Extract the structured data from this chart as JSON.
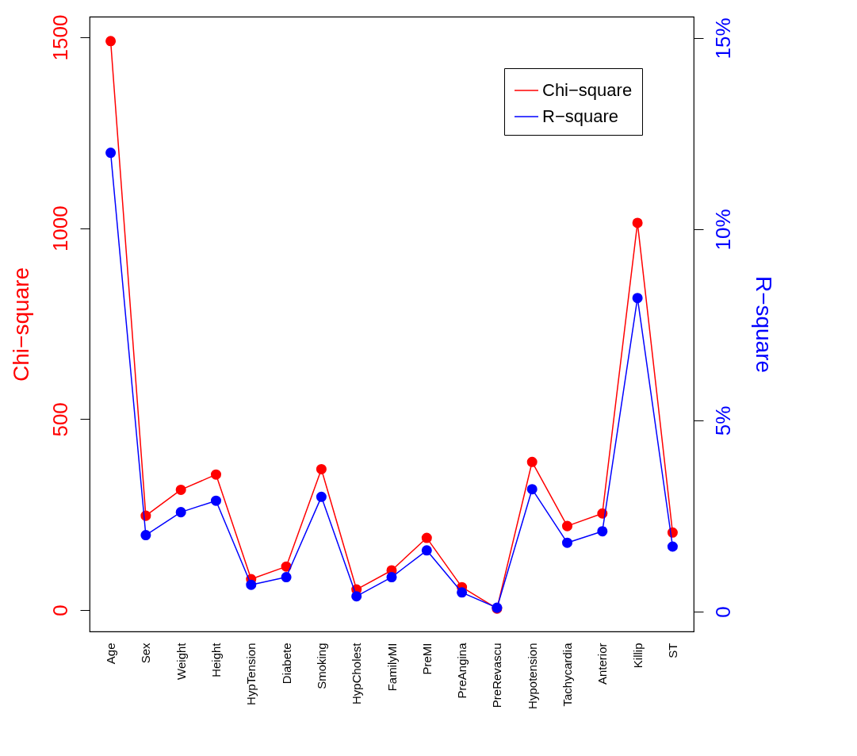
{
  "chart_data": {
    "type": "line",
    "ylabel": "Chi−square",
    "y2label": "R−square",
    "categories": [
      "Age",
      "Sex",
      "Weight",
      "Height",
      "HypTension",
      "Diabete",
      "Smoking",
      "HypCholest",
      "FamilyMI",
      "PreMI",
      "PreAngina",
      "PreRevascu",
      "Hypotension",
      "Tachycardia",
      "Anterior",
      "Killip",
      "ST"
    ],
    "series": [
      {
        "name": "Chi−square",
        "color": "#ff0000",
        "values": [
          1490,
          247,
          315,
          355,
          81,
          114,
          369,
          54,
          104,
          189,
          60,
          4,
          388,
          220,
          253,
          1014,
          203
        ]
      },
      {
        "name": "R−square",
        "color": "#0000ff",
        "axis": "y2",
        "values": [
          12.0,
          2.0,
          2.6,
          2.9,
          0.7,
          0.9,
          3.0,
          0.4,
          0.9,
          1.6,
          0.5,
          0.1,
          3.2,
          1.8,
          2.1,
          8.2,
          1.7
        ]
      }
    ],
    "ylim": [
      -56,
      1554
    ],
    "yticks": [
      0,
      500,
      1000,
      1500
    ],
    "y2lim": [
      -0.52,
      15.56
    ],
    "y2ticks": [
      {
        "value": 0,
        "label": "0"
      },
      {
        "value": 5,
        "label": "5%"
      },
      {
        "value": 10,
        "label": "10%"
      },
      {
        "value": 15,
        "label": "15%"
      }
    ],
    "grid": false,
    "legend": "top right",
    "marker": "circle",
    "line_style": "solid"
  }
}
